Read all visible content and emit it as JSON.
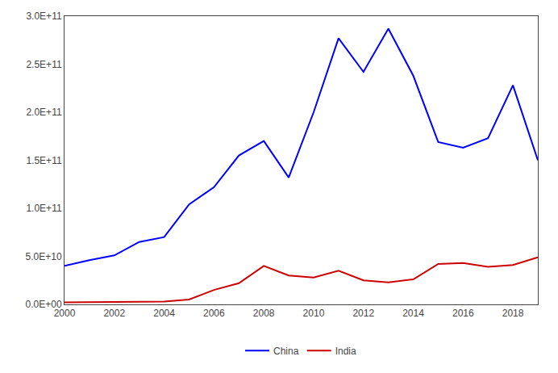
{
  "chart_data": {
    "type": "line",
    "x": [
      2000,
      2001,
      2002,
      2003,
      2004,
      2005,
      2006,
      2007,
      2008,
      2009,
      2010,
      2011,
      2012,
      2013,
      2014,
      2015,
      2016,
      2017,
      2018,
      2019
    ],
    "series": [
      {
        "name": "China",
        "color": "#0000FF",
        "values": [
          40000000000.0,
          46000000000.0,
          51000000000.0,
          65000000000.0,
          70000000000.0,
          104000000000.0,
          122000000000.0,
          155000000000.0,
          170000000000.0,
          132000000000.0,
          200000000000.0,
          277000000000.0,
          242000000000.0,
          287000000000.0,
          238000000000.0,
          169000000000.0,
          163000000000.0,
          173000000000.0,
          228000000000.0,
          150000000000.0
        ]
      },
      {
        "name": "India",
        "color": "#CC0000",
        "values": [
          2000000000.0,
          2200000000.0,
          2400000000.0,
          2600000000.0,
          3000000000.0,
          5000000000.0,
          15000000000.0,
          22000000000.0,
          40000000000.0,
          30000000000.0,
          28000000000.0,
          35000000000.0,
          25000000000.0,
          23000000000.0,
          26000000000.0,
          42000000000.0,
          43000000000.0,
          39000000000.0,
          41000000000.0,
          49000000000.0
        ]
      }
    ],
    "xlim": [
      2000,
      2019
    ],
    "xticks": [
      2000,
      2002,
      2004,
      2006,
      2008,
      2010,
      2012,
      2014,
      2016,
      2018
    ],
    "ylim": [
      0,
      300000000000.0
    ],
    "yticks": [
      {
        "value": 0,
        "label": "0.0E+00"
      },
      {
        "value": 50000000000.0,
        "label": "5.0E+10"
      },
      {
        "value": 100000000000.0,
        "label": "1.0E+11"
      },
      {
        "value": 150000000000.0,
        "label": "1.5E+11"
      },
      {
        "value": 200000000000.0,
        "label": "2.0E+11"
      },
      {
        "value": 250000000000.0,
        "label": "2.5E+11"
      },
      {
        "value": 300000000000.0,
        "label": "3.0E+11"
      }
    ],
    "grid": false,
    "legend": "bottom"
  }
}
